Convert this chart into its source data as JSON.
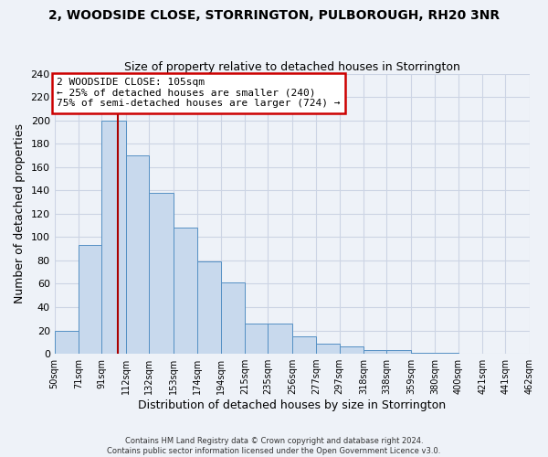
{
  "title": "2, WOODSIDE CLOSE, STORRINGTON, PULBOROUGH, RH20 3NR",
  "subtitle": "Size of property relative to detached houses in Storrington",
  "xlabel": "Distribution of detached houses by size in Storrington",
  "ylabel": "Number of detached properties",
  "bin_edges": [
    50,
    71,
    91,
    112,
    132,
    153,
    174,
    194,
    215,
    235,
    256,
    277,
    297,
    318,
    338,
    359,
    380,
    400,
    421,
    441,
    462
  ],
  "bar_heights": [
    20,
    93,
    200,
    170,
    138,
    108,
    79,
    61,
    26,
    26,
    15,
    9,
    6,
    3,
    3,
    1,
    1,
    0,
    0,
    0
  ],
  "bar_color": "#c8d9ed",
  "bar_edgecolor": "#5590c4",
  "vline_x": 105,
  "vline_color": "#aa0000",
  "annotation_line1": "2 WOODSIDE CLOSE: 105sqm",
  "annotation_line2": "← 25% of detached houses are smaller (240)",
  "annotation_line3": "75% of semi-detached houses are larger (724) →",
  "annotation_box_facecolor": "#ffffff",
  "annotation_box_edgecolor": "#cc0000",
  "ylim": [
    0,
    240
  ],
  "yticks": [
    0,
    20,
    40,
    60,
    80,
    100,
    120,
    140,
    160,
    180,
    200,
    220,
    240
  ],
  "grid_color": "#ccd4e4",
  "background_color": "#eef2f8",
  "footer_line1": "Contains HM Land Registry data © Crown copyright and database right 2024.",
  "footer_line2": "Contains public sector information licensed under the Open Government Licence v3.0."
}
